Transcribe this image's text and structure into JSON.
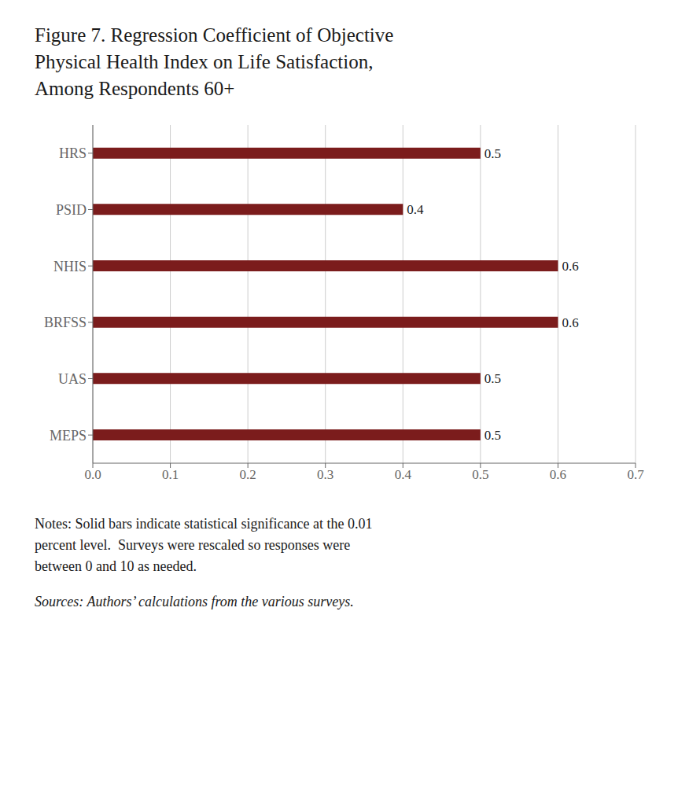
{
  "chart_data": {
    "type": "bar",
    "title": "Figure 7. Regression Coefficient of Objective\nPhysical Health Index on Life Satisfaction,\nAmong Respondents 60+",
    "orientation": "horizontal",
    "categories": [
      "HRS",
      "PSID",
      "NHIS",
      "BRFSS",
      "UAS",
      "MEPS"
    ],
    "values": [
      0.5,
      0.4,
      0.6,
      0.6,
      0.5,
      0.5
    ],
    "color": "#7B1C1C",
    "data_labels": true,
    "xlim": [
      0.0,
      0.7
    ],
    "xticks": [
      {
        "value": 0,
        "label": "0.0"
      },
      0.1,
      0.2,
      0.3,
      0.4,
      0.5,
      0.6,
      0.7
    ],
    "grid": true,
    "annotations": [
      "Notes: Solid bars indicate statistical significance at the 0.01\npercent level.  Surveys were rescaled so responses were\nbetween 0 and 10 as needed.",
      "Sources: Authors’ calculations from the various surveys."
    ]
  }
}
